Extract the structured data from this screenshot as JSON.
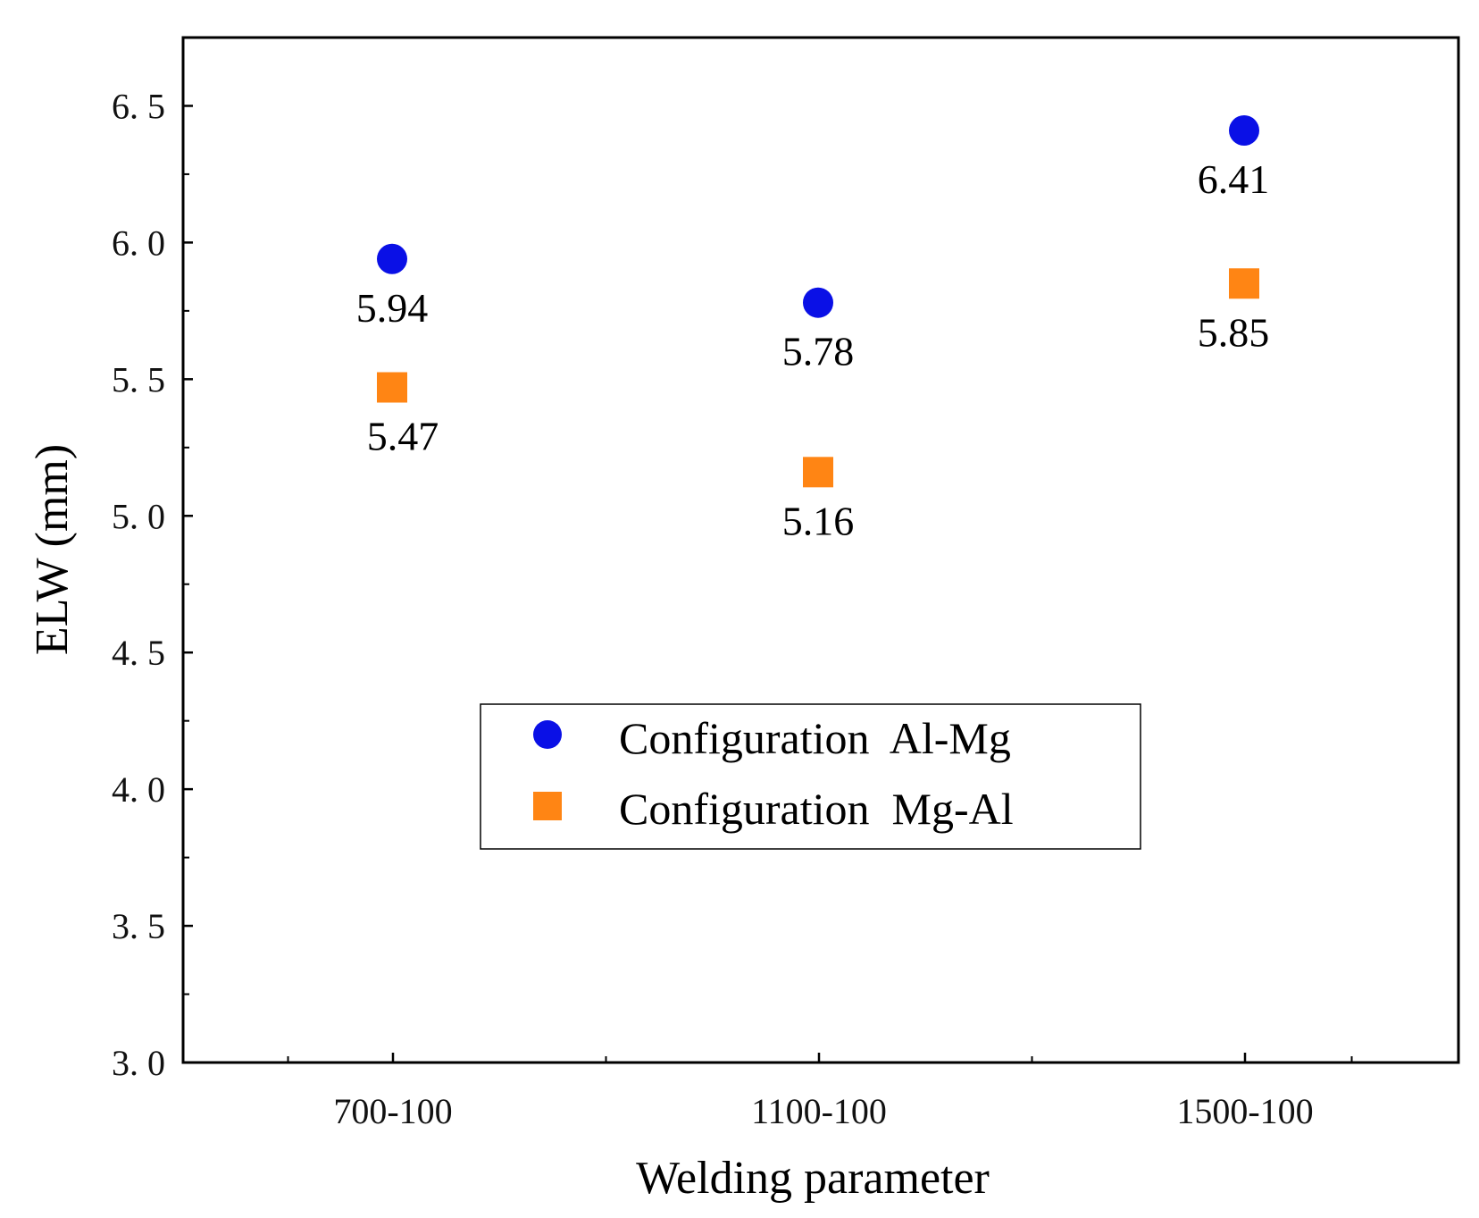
{
  "chart_data": {
    "type": "scatter",
    "title": "",
    "xlabel": "Welding parameter",
    "ylabel": "ELW (mm)",
    "categories": [
      "700-100",
      "1100-100",
      "1500-100"
    ],
    "ylim": [
      3.0,
      6.75
    ],
    "yticks": [
      3.0,
      3.5,
      4.0,
      4.5,
      5.0,
      5.5,
      6.0,
      6.5
    ],
    "ytick_labels": [
      "3. 0",
      "3. 5",
      "4. 0",
      "4. 5",
      "5. 0",
      "5. 5",
      "6. 0",
      "6. 5"
    ],
    "grid": false,
    "legend_position": "center",
    "series": [
      {
        "name": "Configuration  Al-Mg",
        "marker": "circle",
        "color": "#0a10e6",
        "values": [
          5.94,
          5.78,
          6.41
        ],
        "labels": [
          "5.94",
          "5.78",
          "6.41"
        ]
      },
      {
        "name": "Configuration  Mg-Al",
        "marker": "square",
        "color": "#ff8514",
        "values": [
          5.47,
          5.16,
          5.85
        ],
        "labels": [
          "5.47",
          "5.16",
          "5.85"
        ]
      }
    ]
  }
}
